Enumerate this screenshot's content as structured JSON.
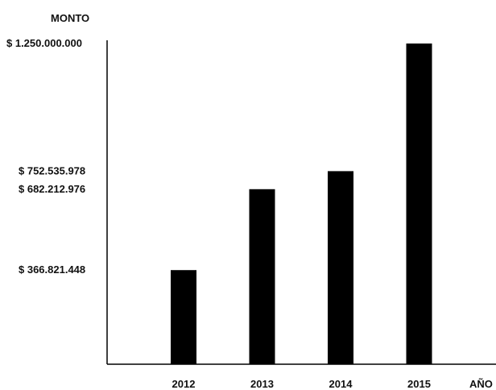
{
  "chart_data": {
    "type": "bar",
    "ylabel": "MONTO",
    "xlabel": "AÑO",
    "categories": [
      "2012",
      "2013",
      "2014",
      "2015"
    ],
    "values": [
      366821448,
      682212976,
      752535978,
      1250000000
    ],
    "ytick_labels": [
      {
        "value": 1250000000,
        "label": "$ 1.250.000.000"
      },
      {
        "value": 752535978,
        "label": "$ 752.535.978"
      },
      {
        "value": 682212976,
        "label": "$ 682.212.976"
      },
      {
        "value": 366821448,
        "label": "$ 366.821.448"
      }
    ],
    "ylim": [
      0,
      1250000000
    ],
    "grid": false,
    "bar_color": "#000000",
    "axis_color": "#000000"
  }
}
